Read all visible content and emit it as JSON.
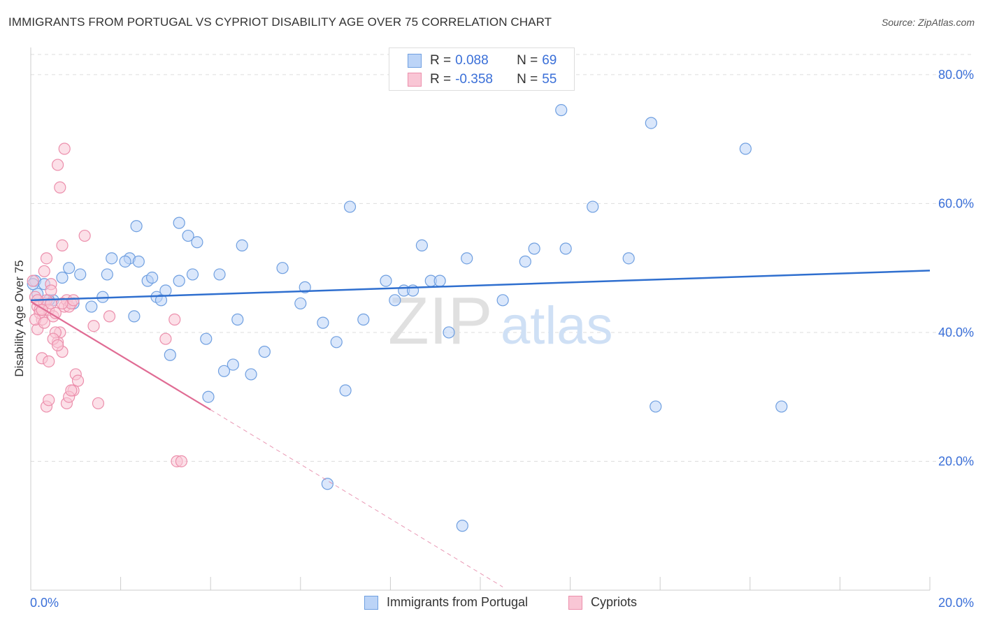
{
  "header": {
    "title": "IMMIGRANTS FROM PORTUGAL VS CYPRIOT DISABILITY AGE OVER 75 CORRELATION CHART",
    "source": "Source: ZipAtlas.com"
  },
  "stats": {
    "r_label": "R =",
    "n_label": "N =",
    "rows": [
      {
        "r": "0.088",
        "n": "69"
      },
      {
        "r": "-0.358",
        "n": "55"
      }
    ]
  },
  "watermark": {
    "zip": "ZIP",
    "atlas": "atlas"
  },
  "legend": {
    "series1": "Immigrants from Portugal",
    "series2": "Cypriots"
  },
  "axes": {
    "x_left_label": "0.0%",
    "x_right_label": "20.0%",
    "y_ticks": [
      "80.0%",
      "60.0%",
      "40.0%",
      "20.0%"
    ]
  },
  "colors": {
    "blue_fill": "#bcd4f7",
    "blue_stroke": "#6f9fe0",
    "blue_line": "#2f6fcf",
    "pink_fill": "#f9c6d5",
    "pink_stroke": "#ec8fac",
    "pink_line": "#e06c94",
    "tick_label": "#3a6fd8"
  },
  "chart_data": {
    "type": "scatter",
    "title": "IMMIGRANTS FROM PORTUGAL VS CYPRIOT DISABILITY AGE OVER 75 CORRELATION CHART",
    "xlabel": "",
    "ylabel": "Disability Age Over 75",
    "xlim": [
      0,
      20
    ],
    "ylim": [
      0,
      84
    ],
    "y_ticks": [
      20,
      40,
      60,
      80
    ],
    "grid": true,
    "series": [
      {
        "name": "Immigrants from Portugal",
        "R": 0.088,
        "N": 69,
        "trend": {
          "x": [
            0,
            20
          ],
          "y": [
            45.0,
            49.6
          ]
        },
        "points": [
          [
            0.1,
            48.0
          ],
          [
            0.15,
            46.0
          ],
          [
            0.3,
            47.5
          ],
          [
            0.5,
            45.0
          ],
          [
            0.7,
            48.5
          ],
          [
            0.85,
            50.0
          ],
          [
            1.1,
            49.0
          ],
          [
            0.95,
            44.5
          ],
          [
            1.35,
            44.0
          ],
          [
            1.6,
            45.5
          ],
          [
            1.8,
            51.5
          ],
          [
            1.7,
            49.0
          ],
          [
            2.2,
            51.5
          ],
          [
            2.4,
            51.0
          ],
          [
            2.1,
            51.0
          ],
          [
            2.3,
            42.5
          ],
          [
            2.35,
            56.5
          ],
          [
            2.6,
            48.0
          ],
          [
            2.7,
            48.5
          ],
          [
            2.8,
            45.5
          ],
          [
            2.9,
            45.0
          ],
          [
            3.0,
            46.5
          ],
          [
            3.1,
            36.5
          ],
          [
            3.3,
            57.0
          ],
          [
            3.3,
            48.0
          ],
          [
            3.5,
            55.0
          ],
          [
            3.6,
            49.0
          ],
          [
            3.7,
            54.0
          ],
          [
            3.9,
            39.0
          ],
          [
            3.95,
            30.0
          ],
          [
            4.2,
            49.0
          ],
          [
            4.3,
            34.0
          ],
          [
            4.5,
            35.0
          ],
          [
            4.6,
            42.0
          ],
          [
            4.7,
            53.5
          ],
          [
            4.9,
            33.5
          ],
          [
            5.2,
            37.0
          ],
          [
            5.6,
            50.0
          ],
          [
            6.0,
            44.5
          ],
          [
            6.1,
            47.0
          ],
          [
            6.5,
            41.5
          ],
          [
            6.6,
            16.5
          ],
          [
            6.8,
            38.5
          ],
          [
            7.0,
            31.0
          ],
          [
            7.1,
            59.5
          ],
          [
            7.4,
            42.0
          ],
          [
            7.9,
            48.0
          ],
          [
            8.1,
            45.0
          ],
          [
            8.3,
            46.5
          ],
          [
            8.5,
            46.5
          ],
          [
            8.7,
            53.5
          ],
          [
            8.9,
            48.0
          ],
          [
            9.1,
            48.0
          ],
          [
            9.3,
            40.0
          ],
          [
            9.6,
            10.0
          ],
          [
            9.7,
            51.5
          ],
          [
            10.5,
            45.0
          ],
          [
            11.0,
            51.0
          ],
          [
            11.2,
            53.0
          ],
          [
            11.8,
            74.5
          ],
          [
            11.9,
            53.0
          ],
          [
            12.5,
            59.5
          ],
          [
            13.3,
            51.5
          ],
          [
            13.8,
            72.5
          ],
          [
            13.9,
            28.5
          ],
          [
            15.9,
            68.5
          ],
          [
            16.7,
            28.5
          ],
          [
            0.05,
            47.5
          ],
          [
            0.4,
            45.0
          ]
        ]
      },
      {
        "name": "Cypriots",
        "R": -0.358,
        "N": 55,
        "trend": {
          "x": [
            0,
            4.0
          ],
          "y": [
            44.8,
            28.0
          ]
        },
        "trend_dashed": {
          "x": [
            4.0,
            10.5
          ],
          "y": [
            28.0,
            0.5
          ]
        },
        "points": [
          [
            0.05,
            48.0
          ],
          [
            0.1,
            45.5
          ],
          [
            0.15,
            44.0
          ],
          [
            0.2,
            43.5
          ],
          [
            0.25,
            42.0
          ],
          [
            0.3,
            44.5
          ],
          [
            0.35,
            45.0
          ],
          [
            0.4,
            43.5
          ],
          [
            0.45,
            44.5
          ],
          [
            0.5,
            42.5
          ],
          [
            0.55,
            43.0
          ],
          [
            0.6,
            38.5
          ],
          [
            0.65,
            40.0
          ],
          [
            0.7,
            37.0
          ],
          [
            0.75,
            44.0
          ],
          [
            0.8,
            45.0
          ],
          [
            0.85,
            44.0
          ],
          [
            0.9,
            44.5
          ],
          [
            0.95,
            31.0
          ],
          [
            1.0,
            33.5
          ],
          [
            1.05,
            32.5
          ],
          [
            0.15,
            40.5
          ],
          [
            0.25,
            36.0
          ],
          [
            0.3,
            49.5
          ],
          [
            0.35,
            51.5
          ],
          [
            0.4,
            35.5
          ],
          [
            0.45,
            47.5
          ],
          [
            0.55,
            40.0
          ],
          [
            0.6,
            66.0
          ],
          [
            0.65,
            62.5
          ],
          [
            0.7,
            53.5
          ],
          [
            0.75,
            68.5
          ],
          [
            0.8,
            29.0
          ],
          [
            0.85,
            30.0
          ],
          [
            0.9,
            31.0
          ],
          [
            0.95,
            45.0
          ],
          [
            1.2,
            55.0
          ],
          [
            1.4,
            41.0
          ],
          [
            1.5,
            29.0
          ],
          [
            1.75,
            42.5
          ],
          [
            3.0,
            39.0
          ],
          [
            3.2,
            42.0
          ],
          [
            3.25,
            20.0
          ],
          [
            3.35,
            20.0
          ],
          [
            0.35,
            28.5
          ],
          [
            0.4,
            29.5
          ],
          [
            0.2,
            43.0
          ],
          [
            0.1,
            42.0
          ],
          [
            0.15,
            45.0
          ],
          [
            0.3,
            41.5
          ],
          [
            0.5,
            39.0
          ],
          [
            0.6,
            38.0
          ],
          [
            0.7,
            44.5
          ],
          [
            0.25,
            43.5
          ],
          [
            0.45,
            46.5
          ]
        ]
      }
    ]
  }
}
